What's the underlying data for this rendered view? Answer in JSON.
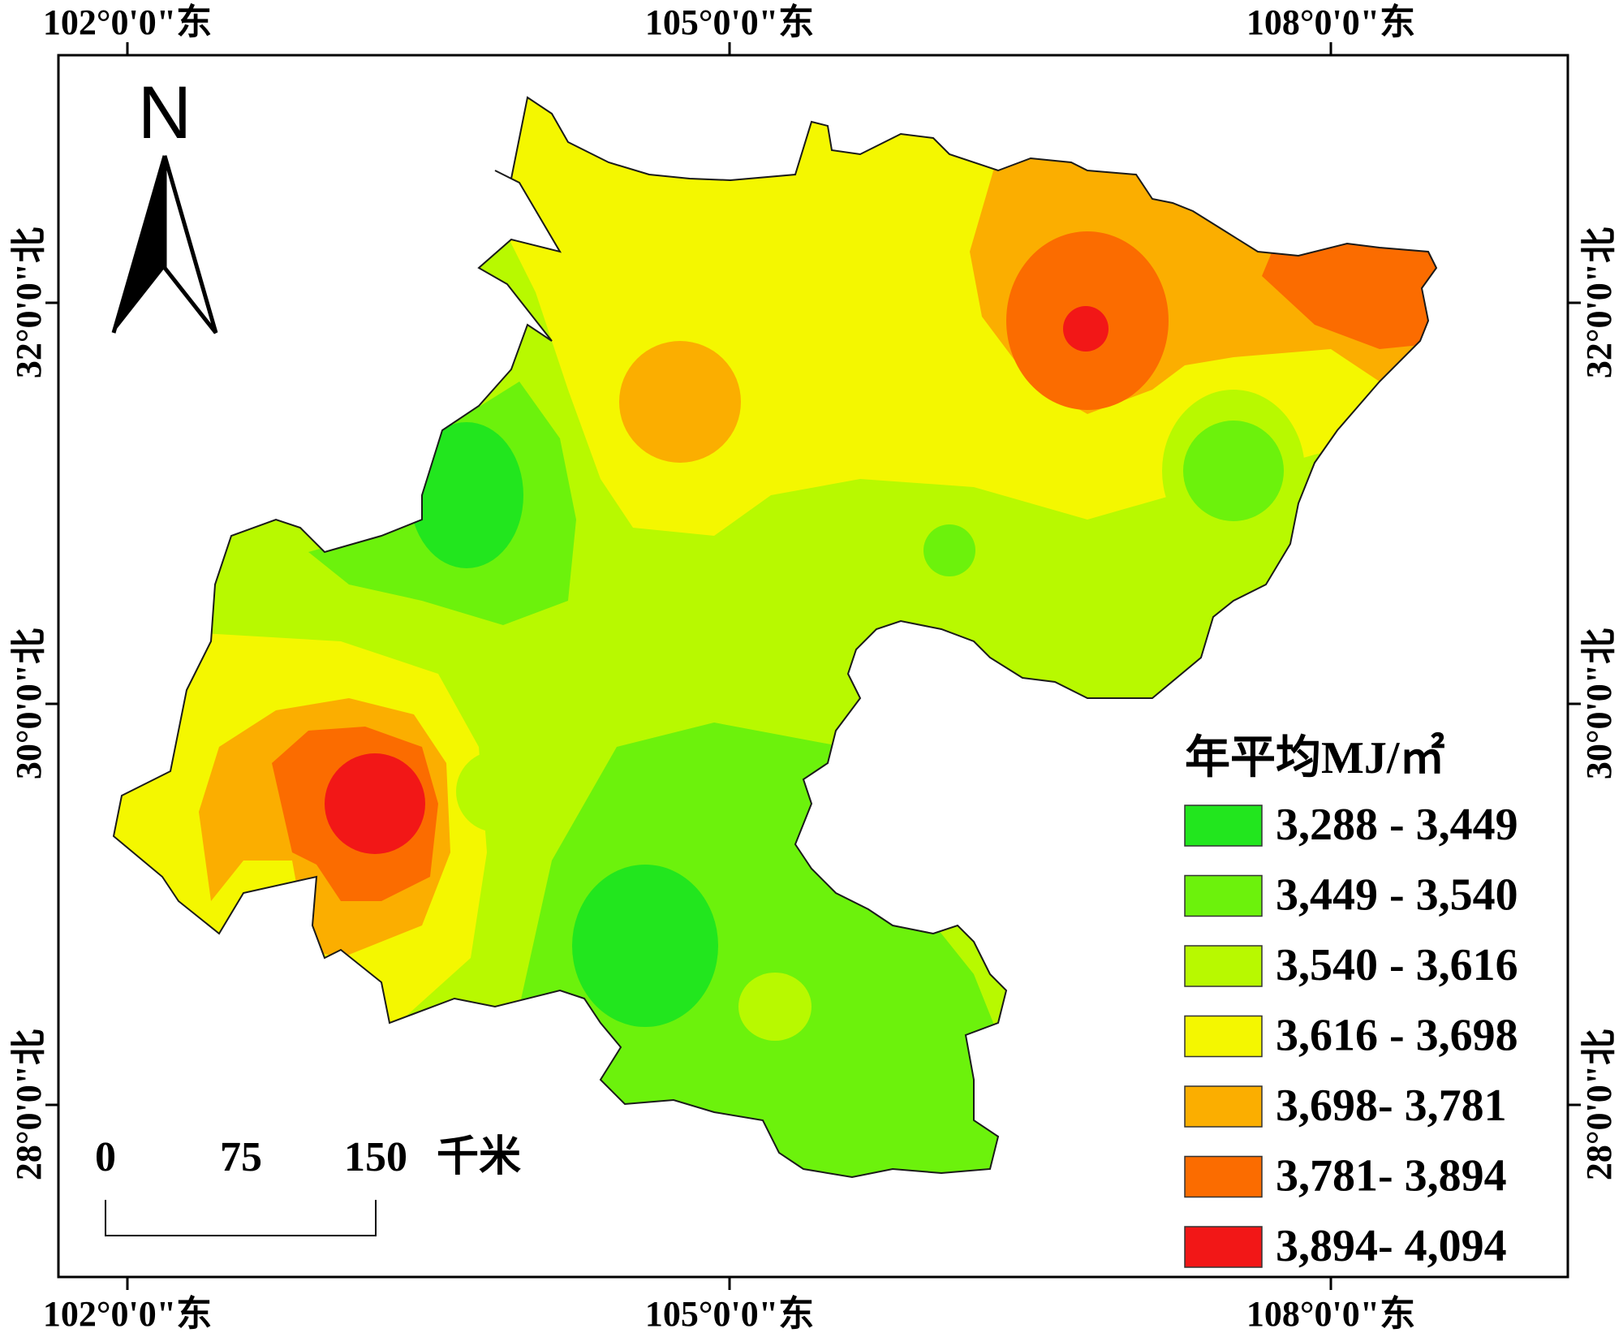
{
  "axes": {
    "top": [
      "102°0'0\"东",
      "105°0'0\"东",
      "108°0'0\"东"
    ],
    "bottom": [
      "102°0'0\"东",
      "105°0'0\"东",
      "108°0'0\"东"
    ],
    "left": [
      "32°0'0\"北",
      "30°0'0\"北",
      "28°0'0\"北"
    ],
    "right": [
      "32°0'0\"北",
      "30°0'0\"北",
      "28°0'0\"北"
    ]
  },
  "north_arrow": {
    "label": "N"
  },
  "scale_bar": {
    "ticks": [
      "0",
      "75",
      "150"
    ],
    "unit": "千米"
  },
  "legend": {
    "title": "年平均MJ/㎡",
    "items": [
      {
        "label": "3,288 - 3,449",
        "color": "#22e61e"
      },
      {
        "label": "3,449 - 3,540",
        "color": "#6cf20c"
      },
      {
        "label": "3,540 - 3,616",
        "color": "#b8f900"
      },
      {
        "label": "3,616 - 3,698",
        "color": "#f4f700"
      },
      {
        "label": "3,698- 3,781",
        "color": "#fbae00"
      },
      {
        "label": "3,781- 3,894",
        "color": "#fb6c00"
      },
      {
        "label": "3,894- 4,094",
        "color": "#f21717"
      }
    ]
  }
}
